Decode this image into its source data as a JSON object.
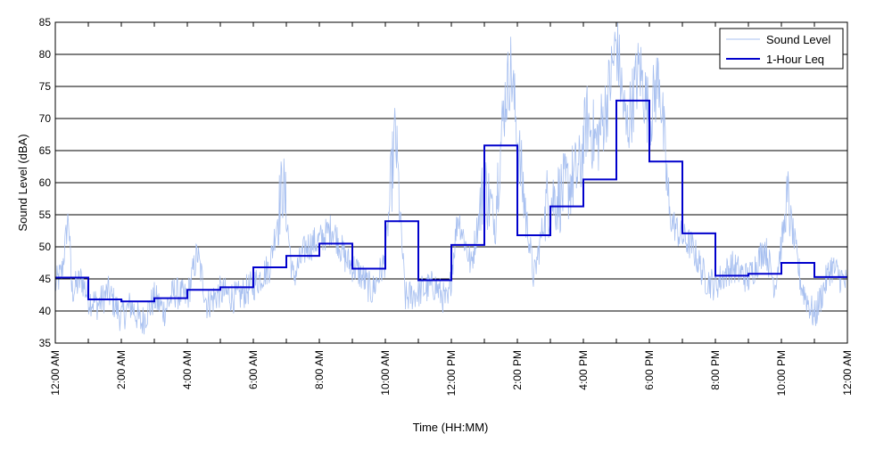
{
  "chart_data": {
    "type": "line",
    "title": "",
    "xlabel": "Time (HH:MM)",
    "ylabel": "Sound Level (dBA)",
    "xlim": [
      0,
      24
    ],
    "ylim": [
      35,
      85
    ],
    "yticks": [
      35,
      40,
      45,
      50,
      55,
      60,
      65,
      70,
      75,
      80,
      85
    ],
    "xtick_labels": [
      "12:00 AM",
      "2:00 AM",
      "4:00 AM",
      "6:00 AM",
      "8:00 AM",
      "10:00 AM",
      "12:00 PM",
      "2:00 PM",
      "4:00 PM",
      "6:00 PM",
      "8:00 PM",
      "10:00 PM",
      "12:00 AM"
    ],
    "grid": "horizontal",
    "legend_position": "top-right",
    "series": [
      {
        "name": "Sound Level",
        "kind": "noisy-line",
        "color": "#a8c0f0",
        "sample_points": [
          [
            0.0,
            44
          ],
          [
            0.2,
            46
          ],
          [
            0.4,
            55
          ],
          [
            0.5,
            43
          ],
          [
            0.8,
            45
          ],
          [
            1.0,
            42
          ],
          [
            1.3,
            41
          ],
          [
            1.6,
            43
          ],
          [
            2.0,
            39
          ],
          [
            2.3,
            41
          ],
          [
            2.6,
            38
          ],
          [
            3.0,
            42
          ],
          [
            3.3,
            40
          ],
          [
            3.6,
            43
          ],
          [
            4.0,
            42
          ],
          [
            4.3,
            49
          ],
          [
            4.6,
            41
          ],
          [
            5.0,
            43
          ],
          [
            5.5,
            42
          ],
          [
            6.0,
            44
          ],
          [
            6.5,
            47
          ],
          [
            6.9,
            60
          ],
          [
            7.2,
            45
          ],
          [
            7.6,
            50
          ],
          [
            8.0,
            51
          ],
          [
            8.4,
            53
          ],
          [
            8.8,
            48
          ],
          [
            9.2,
            46
          ],
          [
            9.6,
            43
          ],
          [
            10.0,
            48
          ],
          [
            10.3,
            68
          ],
          [
            10.6,
            42
          ],
          [
            11.0,
            43
          ],
          [
            11.5,
            44
          ],
          [
            11.9,
            41
          ],
          [
            12.2,
            55
          ],
          [
            12.6,
            47
          ],
          [
            13.0,
            60
          ],
          [
            13.3,
            54
          ],
          [
            13.6,
            72
          ],
          [
            13.8,
            78
          ],
          [
            14.1,
            62
          ],
          [
            14.5,
            45
          ],
          [
            14.9,
            57
          ],
          [
            15.3,
            58
          ],
          [
            15.6,
            60
          ],
          [
            15.9,
            62
          ],
          [
            16.1,
            70
          ],
          [
            16.4,
            66
          ],
          [
            16.7,
            72
          ],
          [
            17.0,
            82
          ],
          [
            17.3,
            68
          ],
          [
            17.7,
            78
          ],
          [
            18.0,
            70
          ],
          [
            18.3,
            77
          ],
          [
            18.6,
            55
          ],
          [
            18.9,
            52
          ],
          [
            19.3,
            50
          ],
          [
            19.7,
            45
          ],
          [
            20.0,
            44
          ],
          [
            20.5,
            47
          ],
          [
            21.0,
            45
          ],
          [
            21.5,
            50
          ],
          [
            21.8,
            44
          ],
          [
            22.2,
            57
          ],
          [
            22.6,
            44
          ],
          [
            23.0,
            39
          ],
          [
            23.5,
            47
          ],
          [
            24.0,
            44
          ]
        ]
      },
      {
        "name": "1-Hour Leq",
        "kind": "step",
        "color": "#0000cc",
        "x": [
          0,
          1,
          2,
          3,
          4,
          5,
          6,
          7,
          8,
          9,
          10,
          11,
          12,
          13,
          14,
          15,
          16,
          17,
          18,
          19,
          20,
          21,
          22,
          23
        ],
        "values": [
          45.2,
          41.8,
          41.5,
          42.0,
          43.3,
          43.7,
          46.8,
          48.6,
          50.5,
          46.6,
          54.0,
          44.8,
          50.3,
          65.8,
          51.8,
          56.3,
          60.5,
          72.8,
          63.3,
          52.1,
          45.5,
          45.8,
          47.5,
          45.3
        ]
      }
    ]
  }
}
